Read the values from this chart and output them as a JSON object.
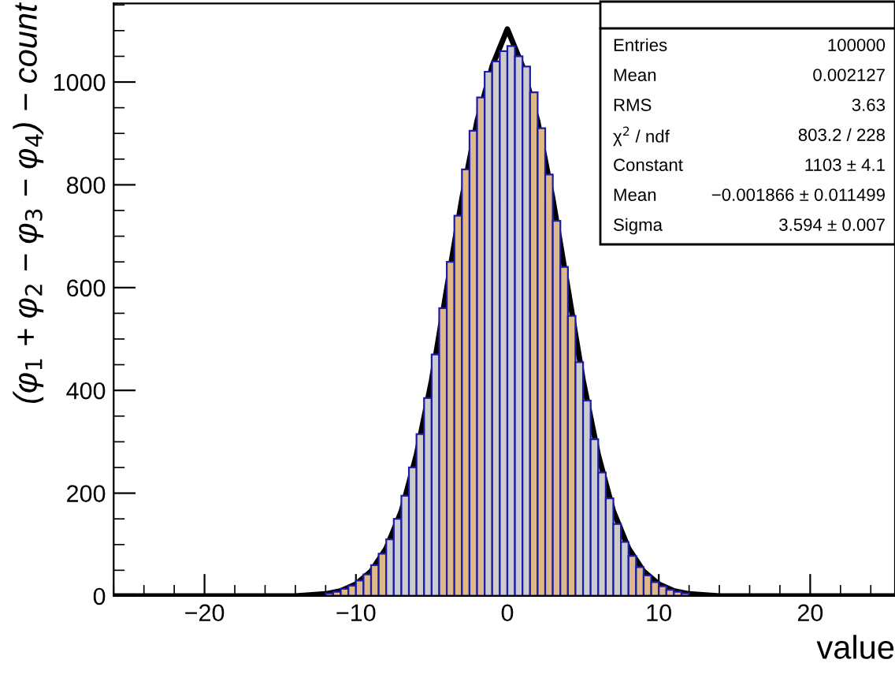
{
  "chart_data": {
    "type": "histogram",
    "xlabel": "value",
    "ylabel": "(φ$_{1}$ + φ$_{2}$ − φ$_{3}$ − φ$_{4}$) − count",
    "bins": [
      -12,
      -11.5,
      -11,
      -10.5,
      -10,
      -9.5,
      -9,
      -8.5,
      -8,
      -7.5,
      -7,
      -6.5,
      -6,
      -5.5,
      -5,
      -4.5,
      -4,
      -3.5,
      -3,
      -2.5,
      -2,
      -1.5,
      -1,
      -0.5,
      0,
      0.5,
      1,
      1.5,
      2,
      2.5,
      3,
      3.5,
      4,
      4.5,
      5,
      5.5,
      6,
      6.5,
      7,
      7.5,
      8,
      8.5,
      9,
      9.5,
      10,
      10.5,
      11,
      11.5,
      12
    ],
    "values": [
      5,
      8,
      14,
      20,
      30,
      42,
      60,
      82,
      110,
      150,
      195,
      250,
      315,
      385,
      470,
      560,
      650,
      740,
      830,
      905,
      970,
      1020,
      1040,
      1060,
      1070,
      1050,
      1030,
      980,
      910,
      820,
      730,
      640,
      545,
      455,
      380,
      305,
      240,
      190,
      140,
      105,
      78,
      56,
      40,
      27,
      19,
      12,
      8,
      5
    ],
    "color": "#1c1ca8",
    "colors": [
      "#deb887",
      "#deb887",
      "#deb887",
      "#deb887",
      "#deb887",
      "#deb887",
      "#deb887",
      "#deb887",
      "#cccccc",
      "#cccccc",
      "#cccccc",
      "#cccccc",
      "#cccccc",
      "#cccccc",
      "#cccccc",
      "#deb887",
      "#deb887",
      "#deb887",
      "#deb887",
      "#deb887",
      "#deb887",
      "#cccccc",
      "#cccccc",
      "#cccccc",
      "#cccccc",
      "#cccccc",
      "#cccccc",
      "#deb887",
      "#deb887",
      "#deb887",
      "#deb887",
      "#deb887",
      "#deb887",
      "#cccccc",
      "#cccccc",
      "#cccccc",
      "#cccccc",
      "#cccccc",
      "#cccccc",
      "#cccccc",
      "#deb887",
      "#deb887",
      "#deb887",
      "#deb887",
      "#deb887",
      "#deb887",
      "#deb887",
      "#deb887"
    ],
    "series": [
      {
        "type": "line",
        "color": "#000000",
        "x": [
          -26,
          -20,
          -14,
          -12,
          -11,
          -10,
          -9,
          -8,
          -7,
          -6,
          -5,
          -4,
          -3,
          -2,
          -1,
          0,
          1,
          2,
          3,
          4,
          5,
          6,
          7,
          8,
          9,
          10,
          11,
          12,
          14,
          20,
          25.6
        ],
        "values": [
          0,
          0,
          0,
          4,
          10,
          23,
          48,
          93,
          165,
          275,
          420,
          598,
          773,
          924,
          1031,
          1103,
          1031,
          924,
          773,
          598,
          420,
          275,
          165,
          93,
          48,
          23,
          10,
          4,
          0,
          0,
          0
        ]
      }
    ],
    "xlim": [
      -26,
      25.6
    ],
    "xticks": [
      -20,
      -10,
      0,
      10,
      20
    ],
    "ylim": [
      0,
      1153
    ],
    "yticks": [
      0,
      200,
      400,
      600,
      800,
      1000
    ],
    "annotations": [
      "Entries",
      "100000",
      "Mean",
      "0.002127",
      "RMS",
      "3.63",
      "χ$^{2}$ / ndf",
      "803.2 / 228",
      "Constant",
      "1103 ± 4.1",
      "Mean",
      "−0.001866 ± 0.011499",
      "Sigma",
      "3.594 ± 0.007"
    ]
  }
}
